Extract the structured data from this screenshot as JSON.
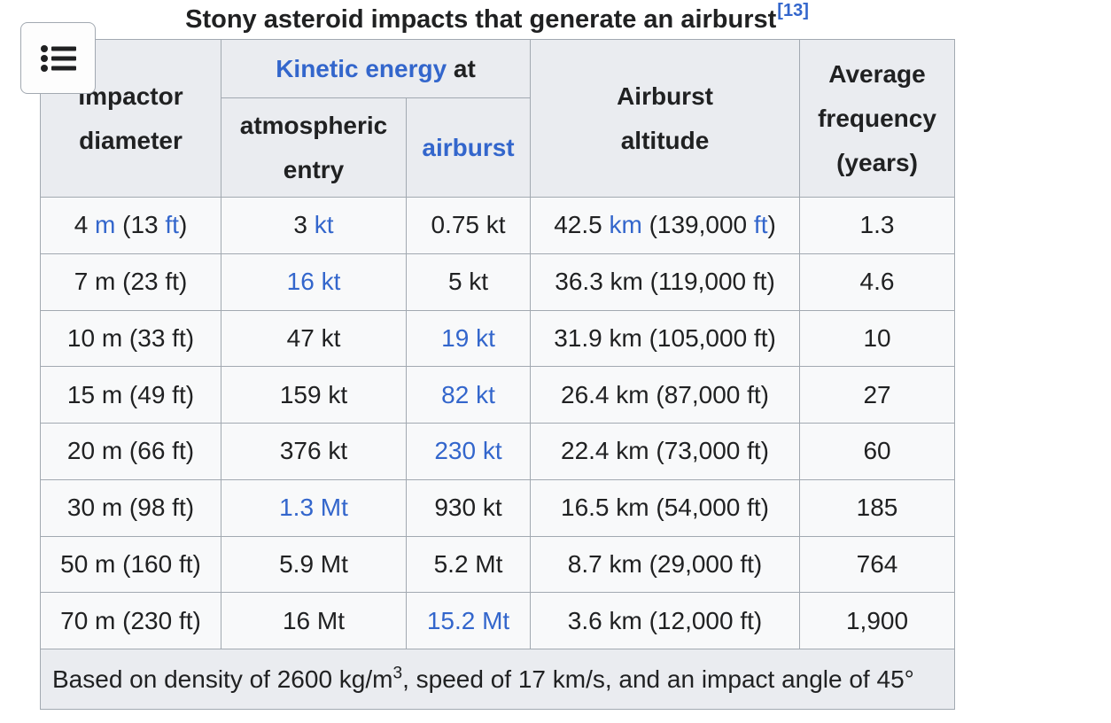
{
  "page": {
    "background": "#ffffff"
  },
  "toc_button": {
    "icon": "list-bullet-icon"
  },
  "colors": {
    "link_blue": "#3366cc",
    "text": "#202122",
    "header_bg": "#eaecf0",
    "cell_bg": "#f8f9fa",
    "footnote_bg": "#eaecf0",
    "border": "#a2a9b1",
    "button_bg": "#fdfdfd"
  },
  "table": {
    "caption": {
      "text": "Stony asteroid impacts that generate an airburst",
      "reference": "[13]"
    },
    "headers": {
      "impactor_diameter": [
        "Impactor",
        "diameter"
      ],
      "kinetic_energy_link": "Kinetic energy",
      "kinetic_energy_suffix": " at",
      "atmospheric_entry": [
        "atmospheric",
        "entry"
      ],
      "airburst_link": "airburst",
      "airburst_altitude": [
        "Airburst",
        "altitude"
      ],
      "average_frequency": [
        "Average",
        "frequency",
        "(years)"
      ]
    },
    "rows": [
      [
        [
          {
            "text": "4 "
          },
          {
            "text": "m",
            "link": true
          },
          {
            "text": " (13 "
          },
          {
            "text": "ft",
            "link": true
          },
          {
            "text": ")"
          }
        ],
        [
          {
            "text": "3 "
          },
          {
            "text": "kt",
            "link": true
          }
        ],
        [
          {
            "text": "0.75 kt"
          }
        ],
        [
          {
            "text": "42.5 "
          },
          {
            "text": "km",
            "link": true
          },
          {
            "text": " (139,000 "
          },
          {
            "text": "ft",
            "link": true
          },
          {
            "text": ")"
          }
        ],
        [
          {
            "text": "1.3"
          }
        ]
      ],
      [
        [
          {
            "text": "7 m (23 ft)"
          }
        ],
        [
          {
            "text": "16 kt",
            "link": true
          }
        ],
        [
          {
            "text": "5 kt"
          }
        ],
        [
          {
            "text": "36.3 km (119,000 ft)"
          }
        ],
        [
          {
            "text": "4.6"
          }
        ]
      ],
      [
        [
          {
            "text": "10 m (33 ft)"
          }
        ],
        [
          {
            "text": "47 kt"
          }
        ],
        [
          {
            "text": "19 kt",
            "link": true
          }
        ],
        [
          {
            "text": "31.9 km (105,000 ft)"
          }
        ],
        [
          {
            "text": "10"
          }
        ]
      ],
      [
        [
          {
            "text": "15 m (49 ft)"
          }
        ],
        [
          {
            "text": "159 kt"
          }
        ],
        [
          {
            "text": "82 kt",
            "link": true
          }
        ],
        [
          {
            "text": "26.4 km (87,000 ft)"
          }
        ],
        [
          {
            "text": "27"
          }
        ]
      ],
      [
        [
          {
            "text": "20 m (66 ft)"
          }
        ],
        [
          {
            "text": "376 kt"
          }
        ],
        [
          {
            "text": "230 kt",
            "link": true
          }
        ],
        [
          {
            "text": "22.4 km (73,000 ft)"
          }
        ],
        [
          {
            "text": "60"
          }
        ]
      ],
      [
        [
          {
            "text": "30 m (98 ft)"
          }
        ],
        [
          {
            "text": "1.3 Mt",
            "link": true
          }
        ],
        [
          {
            "text": "930 kt"
          }
        ],
        [
          {
            "text": "16.5 km (54,000 ft)"
          }
        ],
        [
          {
            "text": "185"
          }
        ]
      ],
      [
        [
          {
            "text": "50 m (160 ft)"
          }
        ],
        [
          {
            "text": "5.9 Mt"
          }
        ],
        [
          {
            "text": "5.2 Mt"
          }
        ],
        [
          {
            "text": "8.7 km (29,000 ft)"
          }
        ],
        [
          {
            "text": "764"
          }
        ]
      ],
      [
        [
          {
            "text": "70 m (230 ft)"
          }
        ],
        [
          {
            "text": "16 Mt"
          }
        ],
        [
          {
            "text": "15.2 Mt",
            "link": true
          }
        ],
        [
          {
            "text": "3.6 km (12,000 ft)"
          }
        ],
        [
          {
            "text": "1,900"
          }
        ]
      ]
    ],
    "footnote": [
      {
        "text": "Based on density of 2600 kg/m"
      },
      {
        "text": "3",
        "sup": true
      },
      {
        "text": ", speed of 17 km/s, and an impact angle of 45°"
      }
    ]
  }
}
